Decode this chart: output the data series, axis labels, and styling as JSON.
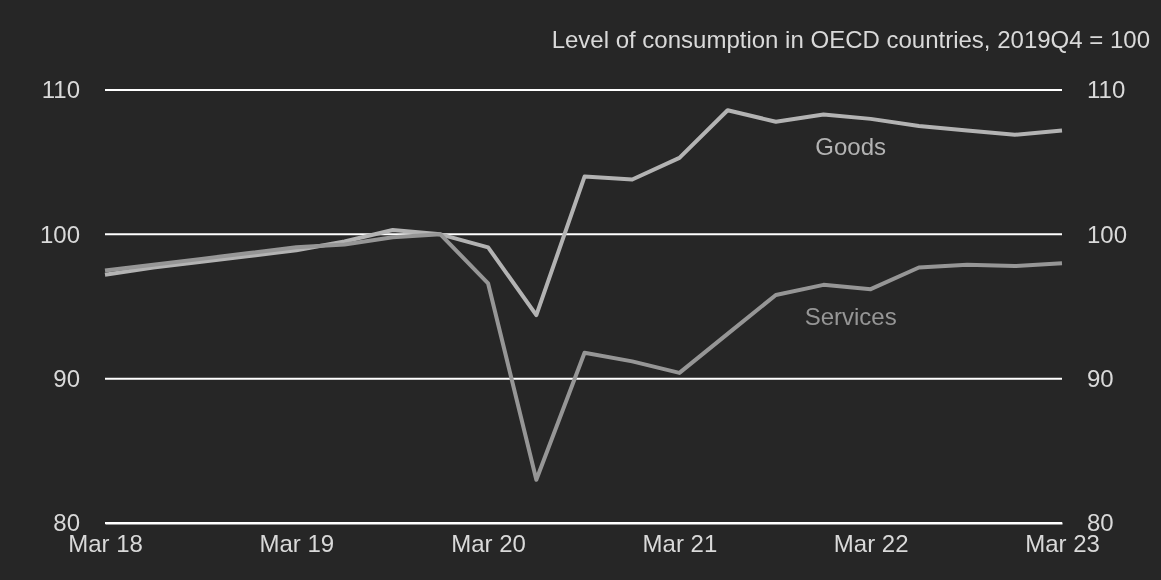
{
  "chart_data": {
    "type": "line",
    "title": "Level of consumption in OECD countries, 2019Q4 = 100",
    "x": [
      "2018-03",
      "2018-06",
      "2018-09",
      "2018-12",
      "2019-03",
      "2019-06",
      "2019-09",
      "2019-12",
      "2020-03",
      "2020-06",
      "2020-09",
      "2020-12",
      "2021-03",
      "2021-06",
      "2021-09",
      "2021-12",
      "2022-03",
      "2022-06",
      "2022-09",
      "2022-12",
      "2023-03"
    ],
    "series": [
      {
        "name": "Goods",
        "color": "#b3b3b3",
        "values": [
          97.2,
          97.7,
          98.1,
          98.5,
          98.9,
          99.5,
          100.3,
          100.0,
          99.1,
          94.4,
          104.0,
          103.8,
          105.3,
          108.6,
          107.8,
          108.3,
          108.0,
          107.5,
          107.2,
          106.9,
          107.2
        ]
      },
      {
        "name": "Services",
        "color": "#969696",
        "values": [
          97.5,
          97.9,
          98.3,
          98.7,
          99.1,
          99.3,
          99.8,
          100.0,
          96.6,
          83.0,
          91.8,
          91.2,
          90.4,
          93.1,
          95.8,
          96.5,
          96.2,
          97.7,
          97.9,
          97.8,
          98.0
        ]
      }
    ],
    "xlim": [
      "2018-03",
      "2023-03"
    ],
    "xticks": [
      {
        "value": "2018-03",
        "label": "Mar 18"
      },
      {
        "value": "2019-03",
        "label": "Mar 19"
      },
      {
        "value": "2020-03",
        "label": "Mar 20"
      },
      {
        "value": "2021-03",
        "label": "Mar 21"
      },
      {
        "value": "2022-03",
        "label": "Mar 22"
      },
      {
        "value": "2023-03",
        "label": "Mar 23"
      }
    ],
    "ylim": [
      80,
      110
    ],
    "yticks": [
      80,
      90,
      100,
      110
    ],
    "y2lim": [
      80,
      110
    ],
    "y2ticks": [
      80,
      90,
      100,
      110
    ],
    "grid": "y",
    "legend": false,
    "marker": "none",
    "line_style": "solid"
  }
}
